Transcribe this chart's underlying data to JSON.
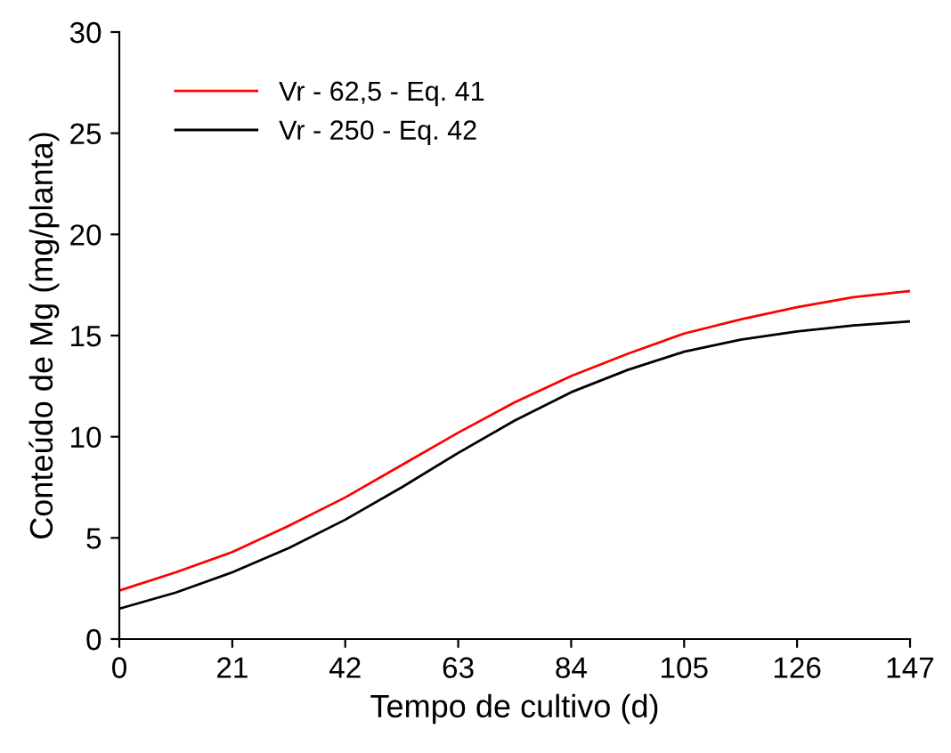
{
  "chart_data": {
    "type": "line",
    "xlabel": "Tempo de cultivo (d)",
    "ylabel": "Conteúdo de Mg (mg/planta)",
    "x": [
      0,
      10.5,
      21,
      31.5,
      42,
      52.5,
      63,
      73.5,
      84,
      94.5,
      105,
      115.5,
      126,
      136.5,
      147
    ],
    "series": [
      {
        "name": "Vr - 62,5 - Eq. 41",
        "color": "#ff0000",
        "values": [
          2.4,
          3.3,
          4.3,
          5.6,
          7.0,
          8.6,
          10.2,
          11.7,
          13.0,
          14.1,
          15.1,
          15.8,
          16.4,
          16.9,
          17.2
        ]
      },
      {
        "name": "Vr - 250 - Eq. 42",
        "color": "#000000",
        "values": [
          1.5,
          2.3,
          3.3,
          4.5,
          5.9,
          7.5,
          9.2,
          10.8,
          12.2,
          13.3,
          14.2,
          14.8,
          15.2,
          15.5,
          15.7
        ]
      }
    ],
    "xlim": [
      0,
      147
    ],
    "xticks": [
      0,
      21,
      42,
      63,
      84,
      105,
      126,
      147
    ],
    "ylim": [
      0,
      30
    ],
    "yticks": [
      0,
      5,
      10,
      15,
      20,
      25,
      30
    ],
    "grid": false,
    "legend": "top left",
    "marker": "none",
    "line_style": "solid"
  }
}
